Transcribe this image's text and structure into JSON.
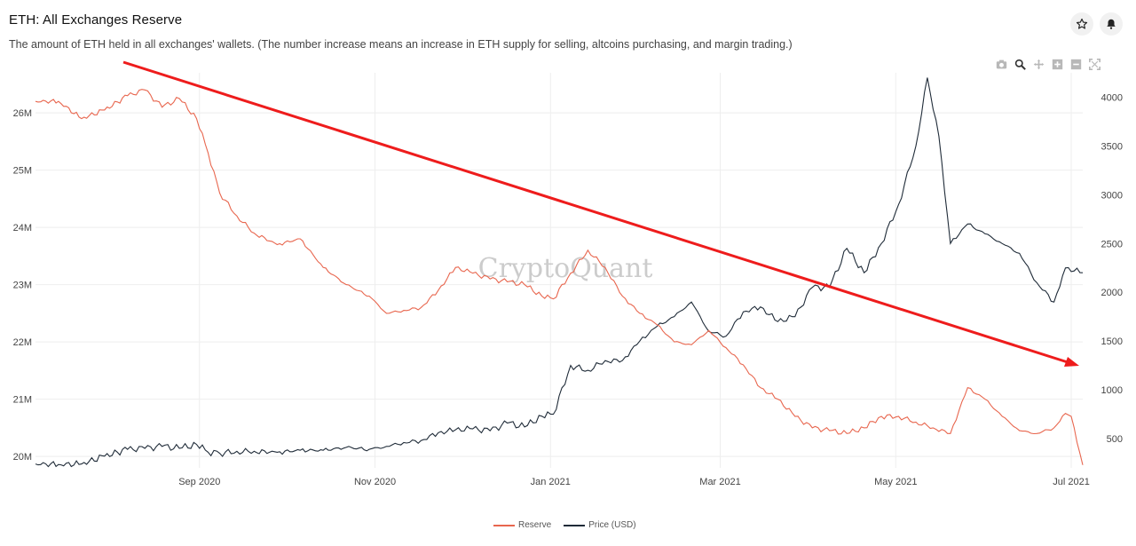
{
  "header": {
    "title": "ETH: All Exchanges Reserve",
    "subtitle": "The amount of ETH held in all exchanges' wallets. (The number increase means an increase in ETH supply for selling, altcoins purchasing, and margin trading.)",
    "star_icon": "star-icon",
    "bell_icon": "bell-icon"
  },
  "modebar": {
    "icons": [
      "camera-icon",
      "zoom-icon",
      "pan-icon",
      "zoom-in-icon",
      "zoom-out-icon",
      "autoscale-icon"
    ]
  },
  "watermark": "CryptoQuant",
  "legend": {
    "reserve": "Reserve",
    "price": "Price (USD)"
  },
  "colors": {
    "reserve": "#e8664e",
    "price": "#1f2b38",
    "arrow": "#ee1c1c",
    "grid": "#eeeeee"
  },
  "chart_data": {
    "type": "line",
    "title": "ETH: All Exchanges Reserve",
    "x_ticks": [
      "Sep 2020",
      "Nov 2020",
      "Jan 2021",
      "Mar 2021",
      "May 2021",
      "Jul 2021"
    ],
    "y_left_ticks": [
      "20M",
      "21M",
      "22M",
      "23M",
      "24M",
      "25M",
      "26M"
    ],
    "y_right_ticks": [
      "500",
      "1000",
      "1500",
      "2000",
      "2500",
      "3000",
      "3500",
      "4000"
    ],
    "y_left_range": [
      19.8,
      26.7
    ],
    "y_right_range": [
      200,
      4250
    ],
    "x_range": [
      "2020-07-06",
      "2021-07-05"
    ],
    "series": [
      {
        "name": "Reserve",
        "axis": "left",
        "x": [
          "2020-07-06",
          "2020-07-14",
          "2020-07-22",
          "2020-07-30",
          "2020-08-07",
          "2020-08-13",
          "2020-08-19",
          "2020-08-25",
          "2020-08-31",
          "2020-09-04",
          "2020-09-08",
          "2020-09-14",
          "2020-09-20",
          "2020-09-28",
          "2020-10-06",
          "2020-10-14",
          "2020-10-22",
          "2020-10-30",
          "2020-11-05",
          "2020-11-11",
          "2020-11-17",
          "2020-11-23",
          "2020-11-29",
          "2020-12-05",
          "2020-12-11",
          "2020-12-17",
          "2020-12-23",
          "2020-12-29",
          "2021-01-02",
          "2021-01-08",
          "2021-01-14",
          "2021-01-20",
          "2021-01-26",
          "2021-02-01",
          "2021-02-07",
          "2021-02-13",
          "2021-02-19",
          "2021-02-25",
          "2021-03-03",
          "2021-03-09",
          "2021-03-15",
          "2021-03-21",
          "2021-03-27",
          "2021-04-02",
          "2021-04-08",
          "2021-04-14",
          "2021-04-20",
          "2021-04-26",
          "2021-05-02",
          "2021-05-08",
          "2021-05-14",
          "2021-05-20",
          "2021-05-26",
          "2021-06-01",
          "2021-06-07",
          "2021-06-13",
          "2021-06-19",
          "2021-06-25",
          "2021-06-29",
          "2021-07-01",
          "2021-07-05"
        ],
        "values": [
          26.2,
          26.2,
          25.9,
          26.05,
          26.3,
          26.4,
          26.1,
          26.25,
          25.9,
          25.3,
          24.6,
          24.2,
          23.9,
          23.7,
          23.8,
          23.3,
          23.0,
          22.8,
          22.5,
          22.55,
          22.6,
          22.9,
          23.3,
          23.2,
          23.1,
          23.05,
          23.0,
          22.8,
          22.75,
          23.2,
          23.6,
          23.3,
          22.8,
          22.5,
          22.3,
          22.0,
          21.95,
          22.2,
          21.9,
          21.6,
          21.2,
          21.0,
          20.7,
          20.5,
          20.45,
          20.4,
          20.5,
          20.7,
          20.7,
          20.6,
          20.5,
          20.4,
          21.2,
          21.0,
          20.7,
          20.45,
          20.4,
          20.5,
          20.75,
          20.7,
          19.85
        ]
      },
      {
        "name": "Price (USD)",
        "axis": "right",
        "x": [
          "2020-07-06",
          "2020-07-14",
          "2020-07-22",
          "2020-07-30",
          "2020-08-07",
          "2020-08-13",
          "2020-08-19",
          "2020-08-25",
          "2020-08-31",
          "2020-09-04",
          "2020-09-08",
          "2020-09-14",
          "2020-09-20",
          "2020-09-28",
          "2020-10-06",
          "2020-10-14",
          "2020-10-22",
          "2020-10-30",
          "2020-11-05",
          "2020-11-11",
          "2020-11-17",
          "2020-11-23",
          "2020-11-29",
          "2020-12-05",
          "2020-12-11",
          "2020-12-17",
          "2020-12-23",
          "2020-12-29",
          "2021-01-02",
          "2021-01-08",
          "2021-01-14",
          "2021-01-20",
          "2021-01-26",
          "2021-02-01",
          "2021-02-07",
          "2021-02-13",
          "2021-02-19",
          "2021-02-25",
          "2021-03-03",
          "2021-03-09",
          "2021-03-15",
          "2021-03-21",
          "2021-03-27",
          "2021-04-02",
          "2021-04-08",
          "2021-04-14",
          "2021-04-20",
          "2021-04-26",
          "2021-05-02",
          "2021-05-08",
          "2021-05-12",
          "2021-05-16",
          "2021-05-20",
          "2021-05-26",
          "2021-06-01",
          "2021-06-07",
          "2021-06-13",
          "2021-06-19",
          "2021-06-25",
          "2021-06-29",
          "2021-07-05"
        ],
        "values": [
          240,
          235,
          240,
          320,
          390,
          400,
          420,
          400,
          440,
          360,
          350,
          370,
          370,
          360,
          380,
          380,
          410,
          390,
          420,
          460,
          480,
          560,
          590,
          600,
          580,
          660,
          620,
          730,
          750,
          1250,
          1200,
          1300,
          1300,
          1500,
          1650,
          1750,
          1900,
          1600,
          1550,
          1800,
          1850,
          1700,
          1750,
          2050,
          2050,
          2450,
          2200,
          2500,
          2900,
          3500,
          4200,
          3600,
          2500,
          2700,
          2600,
          2500,
          2400,
          2100,
          1900,
          2250,
          2200
        ]
      }
    ]
  }
}
